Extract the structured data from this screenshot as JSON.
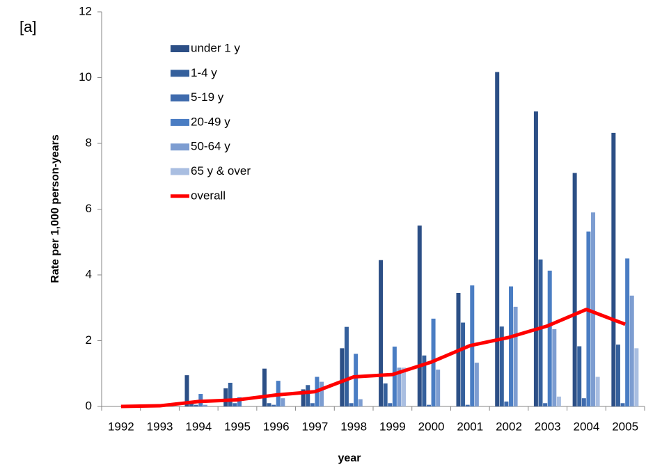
{
  "chart_data": {
    "type": "bar",
    "label": "[a]",
    "x_label": "year",
    "y_label": "Rate per 1,000 person-years",
    "categories": [
      "1992",
      "1993",
      "1994",
      "1995",
      "1996",
      "1997",
      "1998",
      "1999",
      "2000",
      "2001",
      "2002",
      "2003",
      "2004",
      "2005"
    ],
    "series": [
      {
        "name": "under 1 y",
        "color": "#2c4f86",
        "values": [
          0,
          0,
          0.95,
          0.55,
          1.15,
          0.52,
          1.77,
          4.45,
          5.5,
          3.45,
          10.17,
          8.97,
          7.1,
          8.32
        ]
      },
      {
        "name": "1-4 y",
        "color": "#35609c",
        "values": [
          0,
          0,
          0.1,
          0.72,
          0.1,
          0.65,
          2.42,
          0.7,
          1.55,
          2.55,
          2.43,
          4.47,
          1.83,
          1.88
        ]
      },
      {
        "name": "5-19 y",
        "color": "#3f6bad",
        "values": [
          0,
          0,
          0.05,
          0.1,
          0.05,
          0.1,
          0.1,
          0.1,
          0.05,
          0.05,
          0.15,
          0.1,
          0.25,
          0.1
        ]
      },
      {
        "name": "20-49 y",
        "color": "#4a7dc3",
        "values": [
          0,
          0,
          0.38,
          0.28,
          0.78,
          0.9,
          1.6,
          1.82,
          2.67,
          3.68,
          3.65,
          4.13,
          5.32,
          4.5
        ]
      },
      {
        "name": "50-64 y",
        "color": "#7d9dd1",
        "values": [
          0,
          0,
          0.05,
          0,
          0.25,
          0.75,
          0.22,
          1.18,
          1.12,
          1.33,
          3.03,
          2.35,
          5.9,
          3.37
        ]
      },
      {
        "name": "65 y & over",
        "color": "#a9bee1",
        "values": [
          0,
          0,
          0,
          0,
          0,
          0,
          0,
          1.18,
          0,
          0,
          0,
          0.3,
          0.9,
          1.77
        ]
      },
      {
        "name": "overall",
        "type": "line",
        "color": "#ff0000",
        "values": [
          0,
          0.02,
          0.15,
          0.2,
          0.35,
          0.45,
          0.9,
          0.97,
          1.35,
          1.85,
          2.1,
          2.45,
          2.95,
          2.5
        ]
      }
    ],
    "ylim": [
      0,
      12
    ],
    "yticks": [
      0,
      2,
      4,
      6,
      8,
      10,
      12
    ]
  }
}
